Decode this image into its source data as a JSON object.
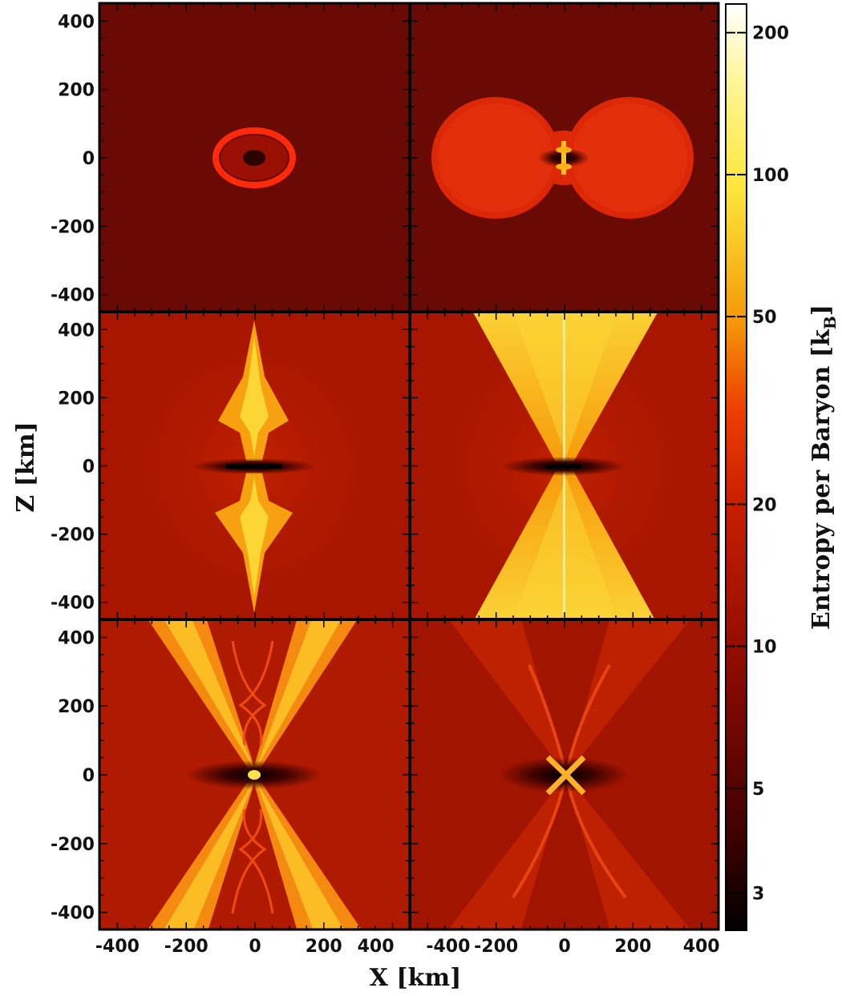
{
  "chart_data": {
    "type": "heatmap",
    "layout": "3x2 grid of panels sharing axes",
    "xlabel": "X [km]",
    "ylabel": "Z [km]",
    "xlim": [
      -450,
      450
    ],
    "ylim": [
      -450,
      450
    ],
    "xticks": [
      -400,
      -200,
      0,
      200,
      400
    ],
    "yticks": [
      -400,
      -200,
      0,
      200,
      400
    ],
    "xtick_labels": [
      "-400",
      "-200",
      "0",
      "200",
      "400"
    ],
    "ytick_labels": [
      "-400",
      "-200",
      "0",
      "200",
      "400"
    ],
    "colorbar": {
      "label": "Entropy per Baryon [k_B]",
      "label_main": "Entropy per Baryon [k",
      "label_sub": "B",
      "label_end": "]",
      "scale": "log",
      "range": [
        2.5,
        230
      ],
      "ticks": [
        3,
        5,
        10,
        20,
        50,
        100,
        200
      ],
      "tick_labels": [
        "3",
        "5",
        "10",
        "20",
        "50",
        "100",
        "200"
      ],
      "colormap": [
        "#000000",
        "#3d0000",
        "#8b0a00",
        "#c81e00",
        "#f04a00",
        "#f59a0a",
        "#fce63a",
        "#fffde0",
        "#ffffff"
      ]
    },
    "panels": [
      {
        "position": "top-left",
        "feature": "small elliptical shock near origin",
        "background": "#6a0a05"
      },
      {
        "position": "top-right",
        "feature": "bilobed shocked region",
        "background": "#6a0a05"
      },
      {
        "position": "middle-left",
        "feature": "polar jet",
        "background": "#a81600"
      },
      {
        "position": "middle-right",
        "feature": "biconical outflow",
        "background": "#a81600"
      },
      {
        "position": "bottom-left",
        "feature": "wide biconical outflow",
        "background": "#b01a00"
      },
      {
        "position": "bottom-right",
        "feature": "narrow X-shaped outflow",
        "background": "#a01400"
      }
    ]
  }
}
